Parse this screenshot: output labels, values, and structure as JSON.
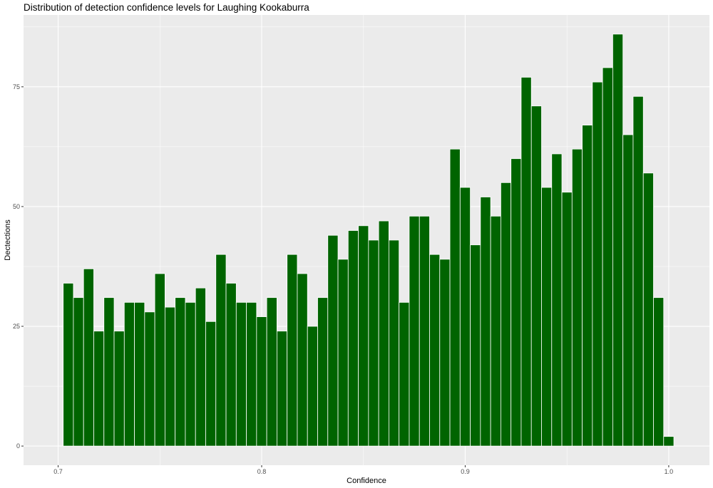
{
  "chart_data": {
    "type": "bar",
    "title": "Distribution of detection confidence levels for Laughing Kookaburra",
    "xlabel": "Confidence",
    "ylabel": "Dectections",
    "x_ticks": [
      "0.7",
      "0.8",
      "0.9",
      "1.0"
    ],
    "y_ticks": [
      "0",
      "25",
      "50",
      "75"
    ],
    "xlim": [
      0.683,
      1.02
    ],
    "ylim": [
      -4,
      90
    ],
    "bin_start": 0.7025,
    "bin_width": 0.005,
    "values": [
      34,
      31,
      37,
      24,
      31,
      24,
      30,
      30,
      28,
      36,
      29,
      31,
      30,
      33,
      26,
      40,
      34,
      30,
      30,
      27,
      31,
      24,
      40,
      36,
      25,
      31,
      44,
      39,
      45,
      46,
      43,
      47,
      43,
      30,
      48,
      48,
      40,
      39,
      62,
      54,
      42,
      52,
      48,
      55,
      60,
      77,
      71,
      54,
      61,
      53,
      62,
      67,
      76,
      79,
      86,
      65,
      73,
      57,
      31,
      2
    ],
    "bar_color": "#006400",
    "bar_edge_color": "#ffffff",
    "panel_color": "#ebebeb",
    "grid": true
  }
}
